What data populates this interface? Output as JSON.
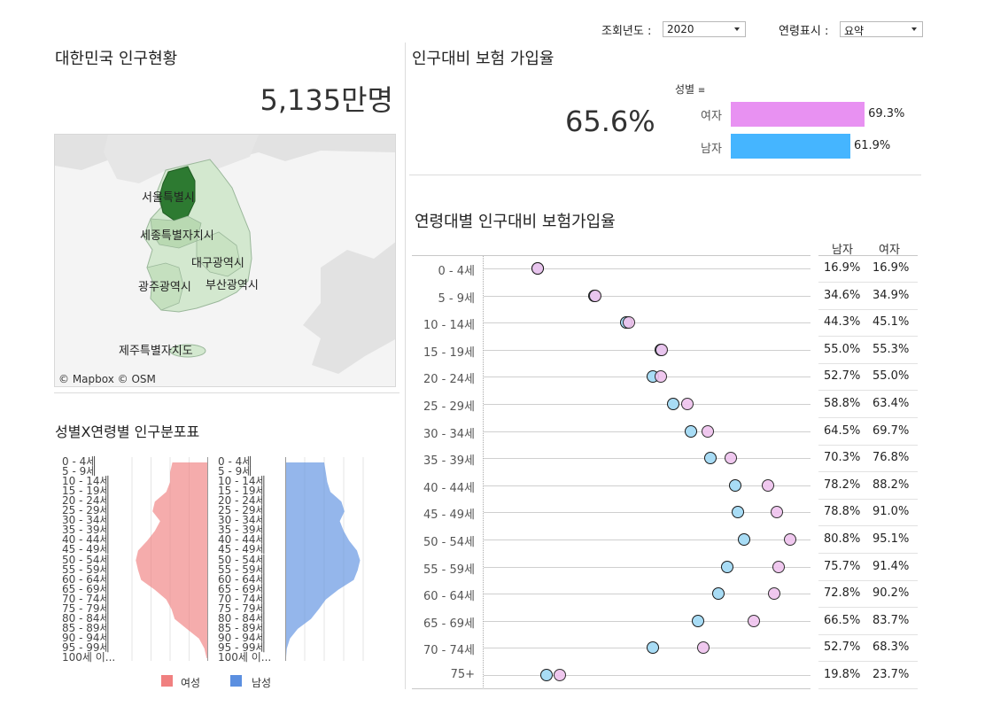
{
  "filters": {
    "year_label": "조회년도 :",
    "year_value": "2020",
    "age_display_label": "연령표시 :",
    "age_display_value": "요약"
  },
  "population": {
    "title": "대한민국 인구현황",
    "total": "5,135만명",
    "map_labels": [
      "서울특별시",
      "세종특별자치시",
      "대구광역시",
      "광주광역시",
      "부산광역시",
      "제주특별자치도"
    ],
    "attribution": "© Mapbox © OSM"
  },
  "insurance": {
    "title": "인구대비 보험 가입율",
    "overall": "65.6%",
    "gender_header": "성별",
    "gender_bars": [
      {
        "label": "여자",
        "value": 69.3,
        "display": "69.3%",
        "color": "#e891f2"
      },
      {
        "label": "남자",
        "value": 61.9,
        "display": "61.9%",
        "color": "#45b5ff"
      }
    ]
  },
  "age_chart": {
    "title": "연령대별 인구대비 보험가입율",
    "col_male": "남자",
    "col_female": "여자",
    "male_color": "#a8dcf5",
    "female_color": "#efc3ee",
    "rows": [
      {
        "age": "0 - 4세",
        "male": 16.9,
        "female": 16.9,
        "male_text": "16.9%",
        "female_text": "16.9%"
      },
      {
        "age": "5 - 9세",
        "male": 34.6,
        "female": 34.9,
        "male_text": "34.6%",
        "female_text": "34.9%"
      },
      {
        "age": "10 - 14세",
        "male": 44.3,
        "female": 45.1,
        "male_text": "44.3%",
        "female_text": "45.1%"
      },
      {
        "age": "15 - 19세",
        "male": 55.0,
        "female": 55.3,
        "male_text": "55.0%",
        "female_text": "55.3%"
      },
      {
        "age": "20 - 24세",
        "male": 52.7,
        "female": 55.0,
        "male_text": "52.7%",
        "female_text": "55.0%"
      },
      {
        "age": "25 - 29세",
        "male": 58.8,
        "female": 63.4,
        "male_text": "58.8%",
        "female_text": "63.4%"
      },
      {
        "age": "30 - 34세",
        "male": 64.5,
        "female": 69.7,
        "male_text": "64.5%",
        "female_text": "69.7%"
      },
      {
        "age": "35 - 39세",
        "male": 70.3,
        "female": 76.8,
        "male_text": "70.3%",
        "female_text": "76.8%"
      },
      {
        "age": "40 - 44세",
        "male": 78.2,
        "female": 88.2,
        "male_text": "78.2%",
        "female_text": "88.2%"
      },
      {
        "age": "45 - 49세",
        "male": 78.8,
        "female": 91.0,
        "male_text": "78.8%",
        "female_text": "91.0%"
      },
      {
        "age": "50 - 54세",
        "male": 80.8,
        "female": 95.1,
        "male_text": "80.8%",
        "female_text": "95.1%"
      },
      {
        "age": "55 - 59세",
        "male": 75.7,
        "female": 91.4,
        "male_text": "75.7%",
        "female_text": "91.4%"
      },
      {
        "age": "60 - 64세",
        "male": 72.8,
        "female": 90.2,
        "male_text": "72.8%",
        "female_text": "90.2%"
      },
      {
        "age": "65 - 69세",
        "male": 66.5,
        "female": 83.7,
        "male_text": "66.5%",
        "female_text": "83.7%"
      },
      {
        "age": "70 - 74세",
        "male": 52.7,
        "female": 68.3,
        "male_text": "52.7%",
        "female_text": "68.3%"
      },
      {
        "age": "75+",
        "male": 19.8,
        "female": 23.7,
        "male_text": "19.8%",
        "female_text": "23.7%"
      }
    ]
  },
  "pyramid": {
    "title": "성별X연령별 인구분포표",
    "legend_female": "여성",
    "legend_male": "남성",
    "female_color": "#f08080",
    "male_color": "#5b8fe0",
    "ages": [
      "0 - 4세",
      "5 - 9세",
      "10 - 14세",
      "15 - 19세",
      "20 - 24세",
      "25 - 29세",
      "30 - 34세",
      "35 - 39세",
      "40 - 44세",
      "45 - 49세",
      "50 - 54세",
      "55 - 59세",
      "60 - 64세",
      "65 - 69세",
      "70 - 74세",
      "75 - 79세",
      "80 - 84세",
      "85 - 89세",
      "90 - 94세",
      "95 - 99세",
      "100세 이..."
    ],
    "female_share": [
      0.47,
      0.5,
      0.5,
      0.55,
      0.7,
      0.73,
      0.63,
      0.7,
      0.8,
      0.92,
      0.95,
      0.92,
      0.88,
      0.7,
      0.55,
      0.48,
      0.44,
      0.28,
      0.12,
      0.05,
      0.02
    ],
    "male_share": [
      0.5,
      0.52,
      0.54,
      0.58,
      0.72,
      0.76,
      0.7,
      0.75,
      0.82,
      0.92,
      0.96,
      0.93,
      0.88,
      0.68,
      0.52,
      0.43,
      0.33,
      0.16,
      0.06,
      0.02,
      0.01
    ]
  }
}
